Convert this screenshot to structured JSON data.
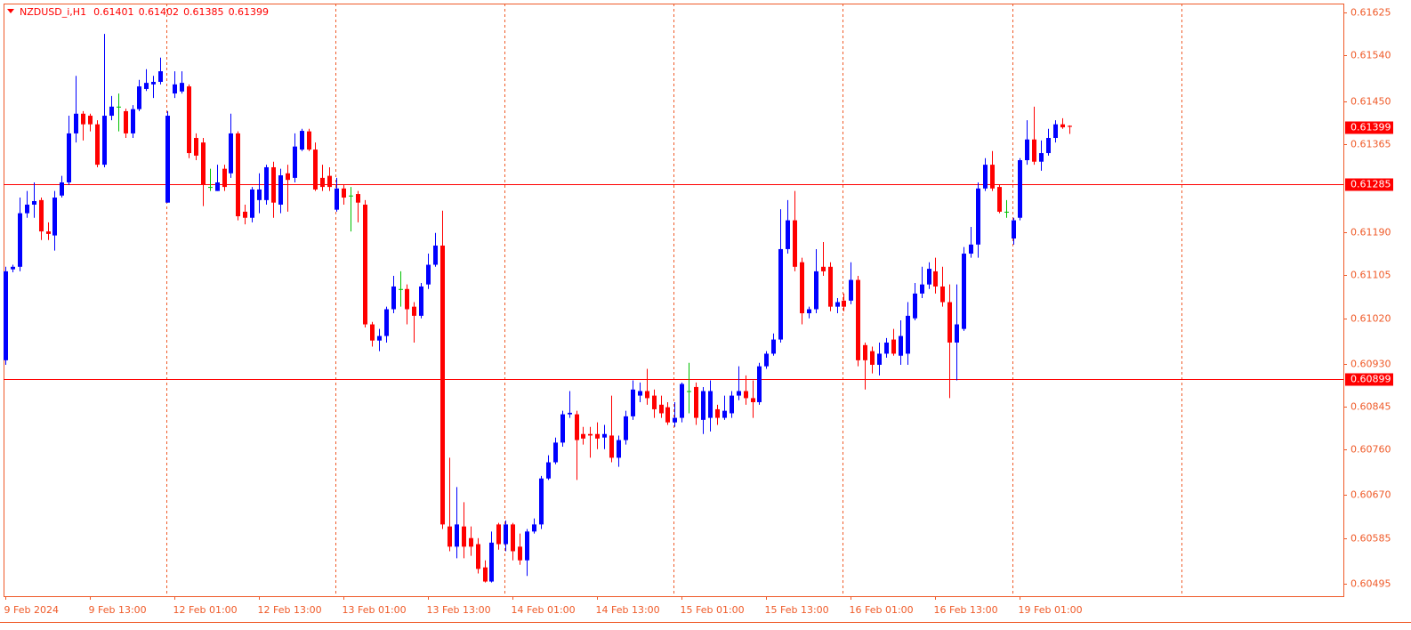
{
  "chart_data": {
    "type": "candlestick",
    "symbol": "NZDUSD_i,H1",
    "categories": [
      "9 Feb 2024",
      null,
      null,
      null,
      null,
      null,
      null,
      null,
      null,
      null,
      null,
      null,
      "9 Feb 13:00",
      null,
      null,
      null,
      null,
      null,
      null,
      null,
      null,
      null,
      null,
      null,
      "12 Feb 01:00",
      null,
      null,
      null,
      null,
      null,
      null,
      null,
      null,
      null,
      null,
      null,
      "12 Feb 13:00",
      null,
      null,
      null,
      null,
      null,
      null,
      null,
      null,
      null,
      null,
      null,
      "13 Feb 01:00",
      null,
      null,
      null,
      null,
      null,
      null,
      null,
      null,
      null,
      null,
      null,
      "13 Feb 13:00",
      null,
      null,
      null,
      null,
      null,
      null,
      null,
      null,
      null,
      null,
      null,
      "14 Feb 01:00",
      null,
      null,
      null,
      null,
      null,
      null,
      null,
      null,
      null,
      null,
      null,
      "14 Feb 13:00",
      null,
      null,
      null,
      null,
      null,
      null,
      null,
      null,
      null,
      null,
      null,
      "15 Feb 01:00",
      null,
      null,
      null,
      null,
      null,
      null,
      null,
      null,
      null,
      null,
      null,
      "15 Feb 13:00",
      null,
      null,
      null,
      null,
      null,
      null,
      null,
      null,
      null,
      null,
      null,
      "16 Feb 01:00",
      null,
      null,
      null,
      null,
      null,
      null,
      null,
      null,
      null,
      null,
      null,
      "16 Feb 13:00",
      null,
      null,
      null,
      null,
      null,
      null,
      null,
      null,
      null,
      null,
      null,
      "19 Feb 01:00",
      null,
      null,
      null,
      null,
      null,
      null,
      null
    ],
    "open": [
      0.60937,
      0.61117,
      0.61122,
      0.61228,
      0.61245,
      0.61254,
      0.61192,
      0.61184,
      0.61263,
      0.61289,
      0.61386,
      0.61425,
      0.61421,
      0.61404,
      0.61324,
      0.61421,
      0.61439,
      0.6143,
      0.61386,
      0.61434,
      0.61474,
      0.61483,
      0.61488,
      0.61249,
      0.61465,
      0.61469,
      0.61479,
      0.61377,
      0.61368,
      0.6128,
      0.61272,
      0.61316,
      0.61307,
      0.61386,
      0.61231,
      0.61219,
      0.61254,
      0.61254,
      0.61319,
      0.61245,
      0.61307,
      0.61298,
      0.61354,
      0.6139,
      0.61354,
      0.61298,
      0.61302,
      0.61235,
      0.61277,
      0.61263,
      0.61266,
      0.61245,
      0.61008,
      0.60976,
      0.60985,
      0.61038,
      0.61078,
      0.61078,
      0.61043,
      0.61025,
      0.61087,
      0.61126,
      0.61164,
      0.60608,
      0.60568,
      0.60608,
      0.60585,
      0.60573,
      0.60527,
      0.60499,
      0.60612,
      0.60573,
      0.60612,
      0.60568,
      0.60541,
      0.60598,
      0.60612,
      0.60703,
      0.60735,
      0.60774,
      0.6083,
      0.6083,
      0.60791,
      0.60791,
      0.60791,
      0.60784,
      0.60788,
      0.60744,
      0.60779,
      0.60826,
      0.60867,
      0.60876,
      0.60867,
      0.60849,
      0.60844,
      0.60814,
      0.60823,
      0.60876,
      0.60884,
      0.60819,
      0.60823,
      0.6084,
      0.60823,
      0.60832,
      0.60867,
      0.60876,
      0.60862,
      0.60854,
      0.60925,
      0.6095,
      0.60978,
      0.61157,
      0.61214,
      0.61131,
      0.6103,
      0.61038,
      0.61122,
      0.61122,
      0.61043,
      0.61055,
      0.61055,
      0.61096,
      0.60967,
      0.60955,
      0.60928,
      0.6095,
      0.60978,
      0.60946,
      0.6095,
      0.6102,
      0.61069,
      0.61087,
      0.61113,
      0.61083,
      0.61052,
      0.60972,
      0.60999,
      0.61148,
      0.61166,
      0.61277,
      0.61324,
      0.6128,
      0.61231,
      0.61178,
      0.61219,
      0.61333,
      0.61374,
      0.6133,
      0.61347,
      0.61377,
      0.61404,
      0.61401
    ],
    "high": [
      0.61122,
      0.61126,
      0.61259,
      0.61272,
      0.61289,
      0.61259,
      0.6121,
      0.61272,
      0.61302,
      0.61421,
      0.615,
      0.6143,
      0.61425,
      0.61412,
      0.61583,
      0.6146,
      0.61465,
      0.61435,
      0.61442,
      0.61492,
      0.61513,
      0.615,
      0.61536,
      0.6143,
      0.61509,
      0.61509,
      0.61483,
      0.61386,
      0.61377,
      0.61316,
      0.61324,
      0.61324,
      0.61425,
      0.6139,
      0.61245,
      0.6128,
      0.61307,
      0.61324,
      0.6133,
      0.61316,
      0.61324,
      0.61386,
      0.61395,
      0.61395,
      0.61368,
      0.61324,
      0.61319,
      0.61298,
      0.61284,
      0.6128,
      0.61272,
      0.61254,
      0.61013,
      0.60999,
      0.61043,
      0.61104,
      0.61113,
      0.61087,
      0.61052,
      0.6109,
      0.61148,
      0.61189,
      0.61233,
      0.60744,
      0.60686,
      0.60656,
      0.60608,
      0.60585,
      0.60541,
      0.60598,
      0.60615,
      0.6062,
      0.60615,
      0.60594,
      0.60603,
      0.60624,
      0.60708,
      0.60749,
      0.60784,
      0.60837,
      0.60876,
      0.60837,
      0.60805,
      0.60805,
      0.60814,
      0.60809,
      0.60867,
      0.60788,
      0.60837,
      0.60897,
      0.60893,
      0.6092,
      0.60879,
      0.60867,
      0.60854,
      0.60854,
      0.60893,
      0.60932,
      0.60893,
      0.60884,
      0.60897,
      0.60849,
      0.60867,
      0.60876,
      0.60925,
      0.60907,
      0.60897,
      0.60932,
      0.60955,
      0.6099,
      0.61236,
      0.61254,
      0.61272,
      0.6114,
      0.61043,
      0.61157,
      0.61171,
      0.61131,
      0.6106,
      0.61069,
      0.61131,
      0.61104,
      0.60972,
      0.60964,
      0.60972,
      0.60981,
      0.60999,
      0.61016,
      0.61052,
      0.6109,
      0.61122,
      0.61131,
      0.6114,
      0.61122,
      0.61087,
      0.61087,
      0.61161,
      0.61201,
      0.61289,
      0.61337,
      0.61351,
      0.61284,
      0.61254,
      0.61219,
      0.61337,
      0.61412,
      0.61439,
      0.61372,
      0.61395,
      0.61412,
      0.61416,
      0.61402
    ],
    "low": [
      0.60928,
      0.61111,
      0.61113,
      0.61219,
      0.61219,
      0.61175,
      0.61175,
      0.61154,
      0.61259,
      0.61284,
      0.61368,
      0.61372,
      0.6139,
      0.61319,
      0.61319,
      0.61412,
      0.6139,
      0.61377,
      0.61377,
      0.6143,
      0.6147,
      0.61456,
      0.61483,
      0.61249,
      0.61456,
      0.61465,
      0.61337,
      0.61333,
      0.61242,
      0.61272,
      0.61272,
      0.61272,
      0.61298,
      0.61214,
      0.61206,
      0.6121,
      0.61228,
      0.61245,
      0.61219,
      0.61228,
      0.61231,
      0.61289,
      0.61351,
      0.61351,
      0.61272,
      0.61272,
      0.61272,
      0.61231,
      0.61245,
      0.61192,
      0.6121,
      0.61002,
      0.60964,
      0.60955,
      0.60972,
      0.6103,
      0.61043,
      0.61008,
      0.60972,
      0.6102,
      0.61078,
      0.61122,
      0.60603,
      0.60559,
      0.60545,
      0.60545,
      0.6055,
      0.60515,
      0.60497,
      0.60497,
      0.60562,
      0.60559,
      0.60541,
      0.60532,
      0.6051,
      0.60594,
      0.60603,
      0.607,
      0.60731,
      0.60766,
      0.60823,
      0.607,
      0.6077,
      0.60744,
      0.60761,
      0.60761,
      0.60735,
      0.60726,
      0.6077,
      0.60819,
      0.60854,
      0.60849,
      0.60823,
      0.60823,
      0.60809,
      0.60805,
      0.60814,
      0.60832,
      0.60809,
      0.60791,
      0.60796,
      0.60809,
      0.60819,
      0.60823,
      0.60858,
      0.60849,
      0.60823,
      0.60849,
      0.6092,
      0.60946,
      0.60972,
      0.61148,
      0.61113,
      0.61008,
      0.6102,
      0.6103,
      0.61104,
      0.61034,
      0.6103,
      0.61034,
      0.61048,
      0.60925,
      0.60879,
      0.60911,
      0.60907,
      0.60942,
      0.60946,
      0.60928,
      0.60928,
      0.61016,
      0.6106,
      0.61078,
      0.61069,
      0.61043,
      0.60862,
      0.60897,
      0.60995,
      0.6114,
      0.6114,
      0.61272,
      0.61272,
      0.61228,
      0.61219,
      0.61166,
      0.61214,
      0.61324,
      0.61324,
      0.61312,
      0.61342,
      0.61368,
      0.61395,
      0.61385
    ],
    "close": [
      0.61113,
      0.61122,
      0.61228,
      0.61245,
      0.61252,
      0.61192,
      0.61187,
      0.61259,
      0.61289,
      0.61386,
      0.61425,
      0.61404,
      0.61404,
      0.61324,
      0.61421,
      0.61439,
      0.61439,
      0.61386,
      0.61434,
      0.61479,
      0.61486,
      0.61488,
      0.61509,
      0.61421,
      0.61483,
      0.61486,
      0.61347,
      0.61342,
      0.61284,
      0.6128,
      0.61289,
      0.6128,
      0.61386,
      0.61222,
      0.61219,
      0.61275,
      0.61275,
      0.61319,
      0.61249,
      0.61303,
      0.61294,
      0.6136,
      0.61391,
      0.61354,
      0.61275,
      0.6128,
      0.6128,
      0.61277,
      0.61259,
      0.61263,
      0.61249,
      0.61008,
      0.60976,
      0.60985,
      0.61038,
      0.61083,
      0.61078,
      0.61038,
      0.61025,
      0.61083,
      0.61126,
      0.61164,
      0.60612,
      0.60568,
      0.60612,
      0.60568,
      0.60568,
      0.60524,
      0.60499,
      0.60576,
      0.60573,
      0.60612,
      0.60559,
      0.60541,
      0.60598,
      0.60612,
      0.60703,
      0.60735,
      0.60774,
      0.6083,
      0.60833,
      0.60779,
      0.60782,
      0.60788,
      0.60782,
      0.60791,
      0.60744,
      0.60779,
      0.60826,
      0.60879,
      0.60876,
      0.60862,
      0.6084,
      0.60832,
      0.60814,
      0.60823,
      0.6089,
      0.60876,
      0.60823,
      0.60876,
      0.60876,
      0.60823,
      0.60837,
      0.60867,
      0.60876,
      0.60862,
      0.60854,
      0.60925,
      0.6095,
      0.60978,
      0.61157,
      0.61214,
      0.61122,
      0.6103,
      0.61038,
      0.61113,
      0.61113,
      0.61043,
      0.61052,
      0.61043,
      0.61096,
      0.60937,
      0.60937,
      0.60928,
      0.6095,
      0.60972,
      0.6095,
      0.60985,
      0.61025,
      0.61069,
      0.61087,
      0.61118,
      0.61083,
      0.61052,
      0.60972,
      0.61008,
      0.61148,
      0.61166,
      0.61277,
      0.61324,
      0.61277,
      0.61231,
      0.61231,
      0.61214,
      0.61333,
      0.61374,
      0.6133,
      0.61347,
      0.61377,
      0.61404,
      0.61398,
      0.61399
    ],
    "colors": {
      "up": "#0000ff",
      "down": "#ff0000",
      "doji": "#00c000"
    },
    "axis_color": "#ef5a28",
    "levels": [
      0.61285,
      0.60899
    ],
    "level_color": "#ff0000",
    "ylim": [
      0.6047,
      0.61643
    ],
    "yticks": [
      0.61625,
      {
        "value": 0.6154,
        "label": "0.61540"
      },
      {
        "value": 0.6145,
        "label": "0.61450"
      },
      0.61365,
      {
        "value": 0.6119,
        "label": "0.61190"
      },
      0.61105,
      {
        "value": 0.6102,
        "label": "0.61020"
      },
      {
        "value": 0.6093,
        "label": "0.60930"
      },
      0.60845,
      {
        "value": 0.6076,
        "label": "0.60760"
      },
      {
        "value": 0.6067,
        "label": "0.60670"
      },
      0.60585,
      0.60495
    ]
  }
}
